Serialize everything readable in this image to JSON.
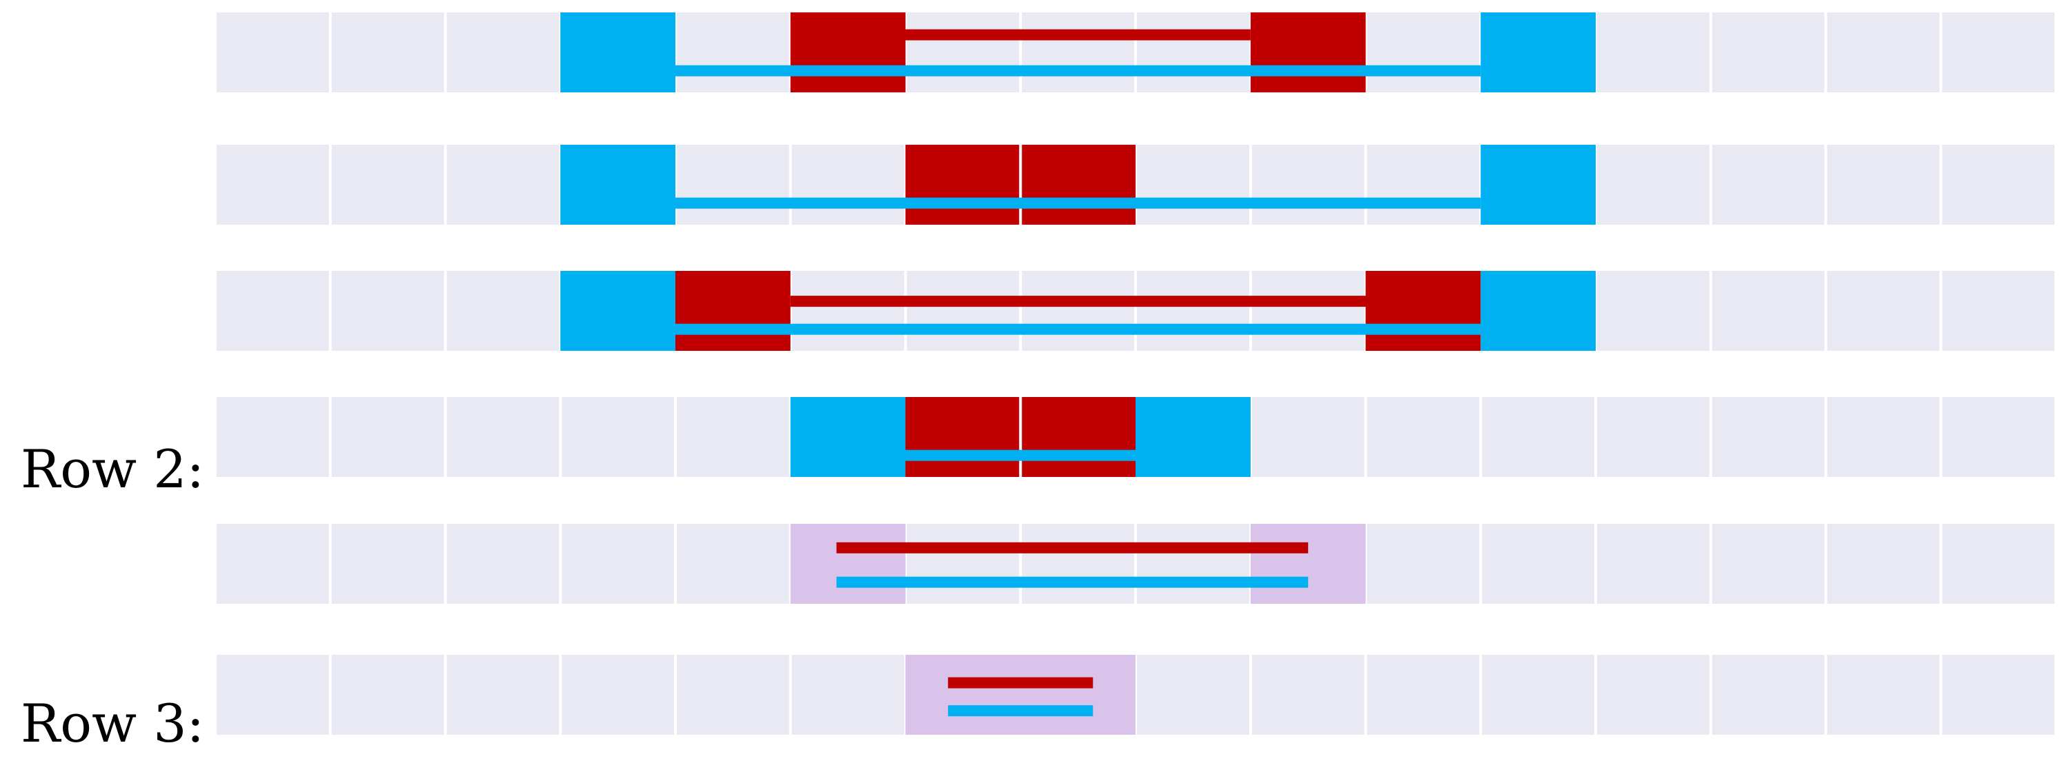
{
  "labels": {
    "row2": "Row 2:",
    "row3": "Row 3:"
  },
  "colors": {
    "background": "#ffffff",
    "cell": "#e9e9f4",
    "gridline": "#ffffff",
    "blue": "#00b0f0",
    "red": "#c00000",
    "purple": "#dac3ea"
  },
  "grid": {
    "cell_count": 16
  },
  "strips": [
    {
      "name": "strip-1",
      "blocks": [
        {
          "name": "blue-block",
          "color": "blue",
          "start": 3,
          "end": 4
        },
        {
          "name": "red-block",
          "color": "red",
          "start": 5,
          "end": 6
        },
        {
          "name": "red-block",
          "color": "red",
          "start": 9,
          "end": 10
        },
        {
          "name": "blue-block",
          "color": "blue",
          "start": 11,
          "end": 12
        }
      ],
      "bars": [
        {
          "name": "red-connector",
          "color": "red",
          "start": 6,
          "end": 9,
          "level": 0.28
        },
        {
          "name": "blue-connector",
          "color": "blue",
          "start": 4,
          "end": 11,
          "level": 0.73
        }
      ]
    },
    {
      "name": "strip-2",
      "blocks": [
        {
          "name": "blue-block",
          "color": "blue",
          "start": 3,
          "end": 4
        },
        {
          "name": "red-block",
          "color": "red",
          "start": 6,
          "end": 7
        },
        {
          "name": "red-block",
          "color": "red",
          "start": 7,
          "end": 8
        },
        {
          "name": "blue-block",
          "color": "blue",
          "start": 11,
          "end": 12
        }
      ],
      "bars": [
        {
          "name": "blue-connector",
          "color": "blue",
          "start": 4,
          "end": 11,
          "level": 0.73
        }
      ]
    },
    {
      "name": "strip-3",
      "blocks": [
        {
          "name": "blue-block",
          "color": "blue",
          "start": 3,
          "end": 4
        },
        {
          "name": "red-block",
          "color": "red",
          "start": 4,
          "end": 5
        },
        {
          "name": "red-block",
          "color": "red",
          "start": 10,
          "end": 11
        },
        {
          "name": "blue-block",
          "color": "blue",
          "start": 11,
          "end": 12
        }
      ],
      "bars": [
        {
          "name": "red-connector",
          "color": "red",
          "start": 5,
          "end": 10,
          "level": 0.38
        },
        {
          "name": "blue-connector",
          "color": "blue",
          "start": 4,
          "end": 11,
          "level": 0.73
        }
      ]
    },
    {
      "name": "strip-4",
      "blocks": [
        {
          "name": "blue-block",
          "color": "blue",
          "start": 5,
          "end": 6
        },
        {
          "name": "red-block",
          "color": "red",
          "start": 6,
          "end": 7
        },
        {
          "name": "red-block",
          "color": "red",
          "start": 7,
          "end": 8
        },
        {
          "name": "blue-block",
          "color": "blue",
          "start": 8,
          "end": 9
        }
      ],
      "bars": [
        {
          "name": "blue-connector",
          "color": "blue",
          "start": 6,
          "end": 8,
          "level": 0.73
        }
      ]
    },
    {
      "name": "strip-5",
      "blocks": [
        {
          "name": "purple-block",
          "color": "purple",
          "start": 5,
          "end": 6
        },
        {
          "name": "purple-block",
          "color": "purple",
          "start": 9,
          "end": 10
        }
      ],
      "bars": [
        {
          "name": "red-connector",
          "color": "red",
          "start": 5.4,
          "end": 9.5,
          "level": 0.3
        },
        {
          "name": "blue-connector",
          "color": "blue",
          "start": 5.4,
          "end": 9.5,
          "level": 0.73
        }
      ]
    },
    {
      "name": "strip-6",
      "blocks": [
        {
          "name": "purple-block",
          "color": "purple",
          "start": 6,
          "end": 8
        }
      ],
      "bars": [
        {
          "name": "red-connector",
          "color": "red",
          "start": 6.37,
          "end": 7.63,
          "level": 0.35
        },
        {
          "name": "blue-connector",
          "color": "blue",
          "start": 6.37,
          "end": 7.63,
          "level": 0.7
        }
      ]
    }
  ]
}
